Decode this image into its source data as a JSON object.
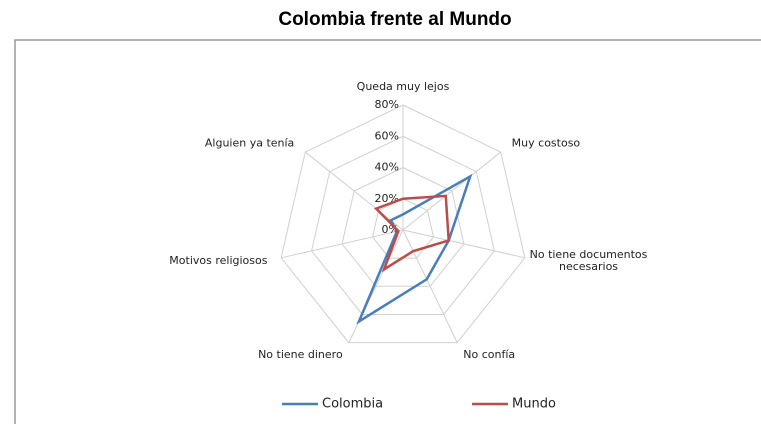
{
  "chart_data": {
    "type": "radar",
    "title": "Colombia frente al Mundo",
    "categories": [
      "Queda muy lejos",
      "Muy costoso",
      "No tiene documentos\nnecesarios",
      "No confía",
      "No tiene dinero",
      "Motivos religiosos",
      "Alguien ya tenía"
    ],
    "series": [
      {
        "name": "Colombia",
        "color": "#4a7ebb",
        "values": [
          10,
          55,
          30,
          35,
          65,
          4,
          10
        ]
      },
      {
        "name": "Mundo",
        "color": "#be4b48",
        "values": [
          20,
          35,
          30,
          15,
          28,
          3,
          22
        ]
      }
    ],
    "ylim": [
      0,
      80
    ],
    "yticks": [
      {
        "value": 0,
        "label": "0%"
      },
      {
        "value": 20,
        "label": "20%"
      },
      {
        "value": 40,
        "label": "40%"
      },
      {
        "value": 60,
        "label": "60%"
      },
      {
        "value": 80,
        "label": "80%"
      }
    ],
    "grid": true,
    "legend": "bottom"
  }
}
